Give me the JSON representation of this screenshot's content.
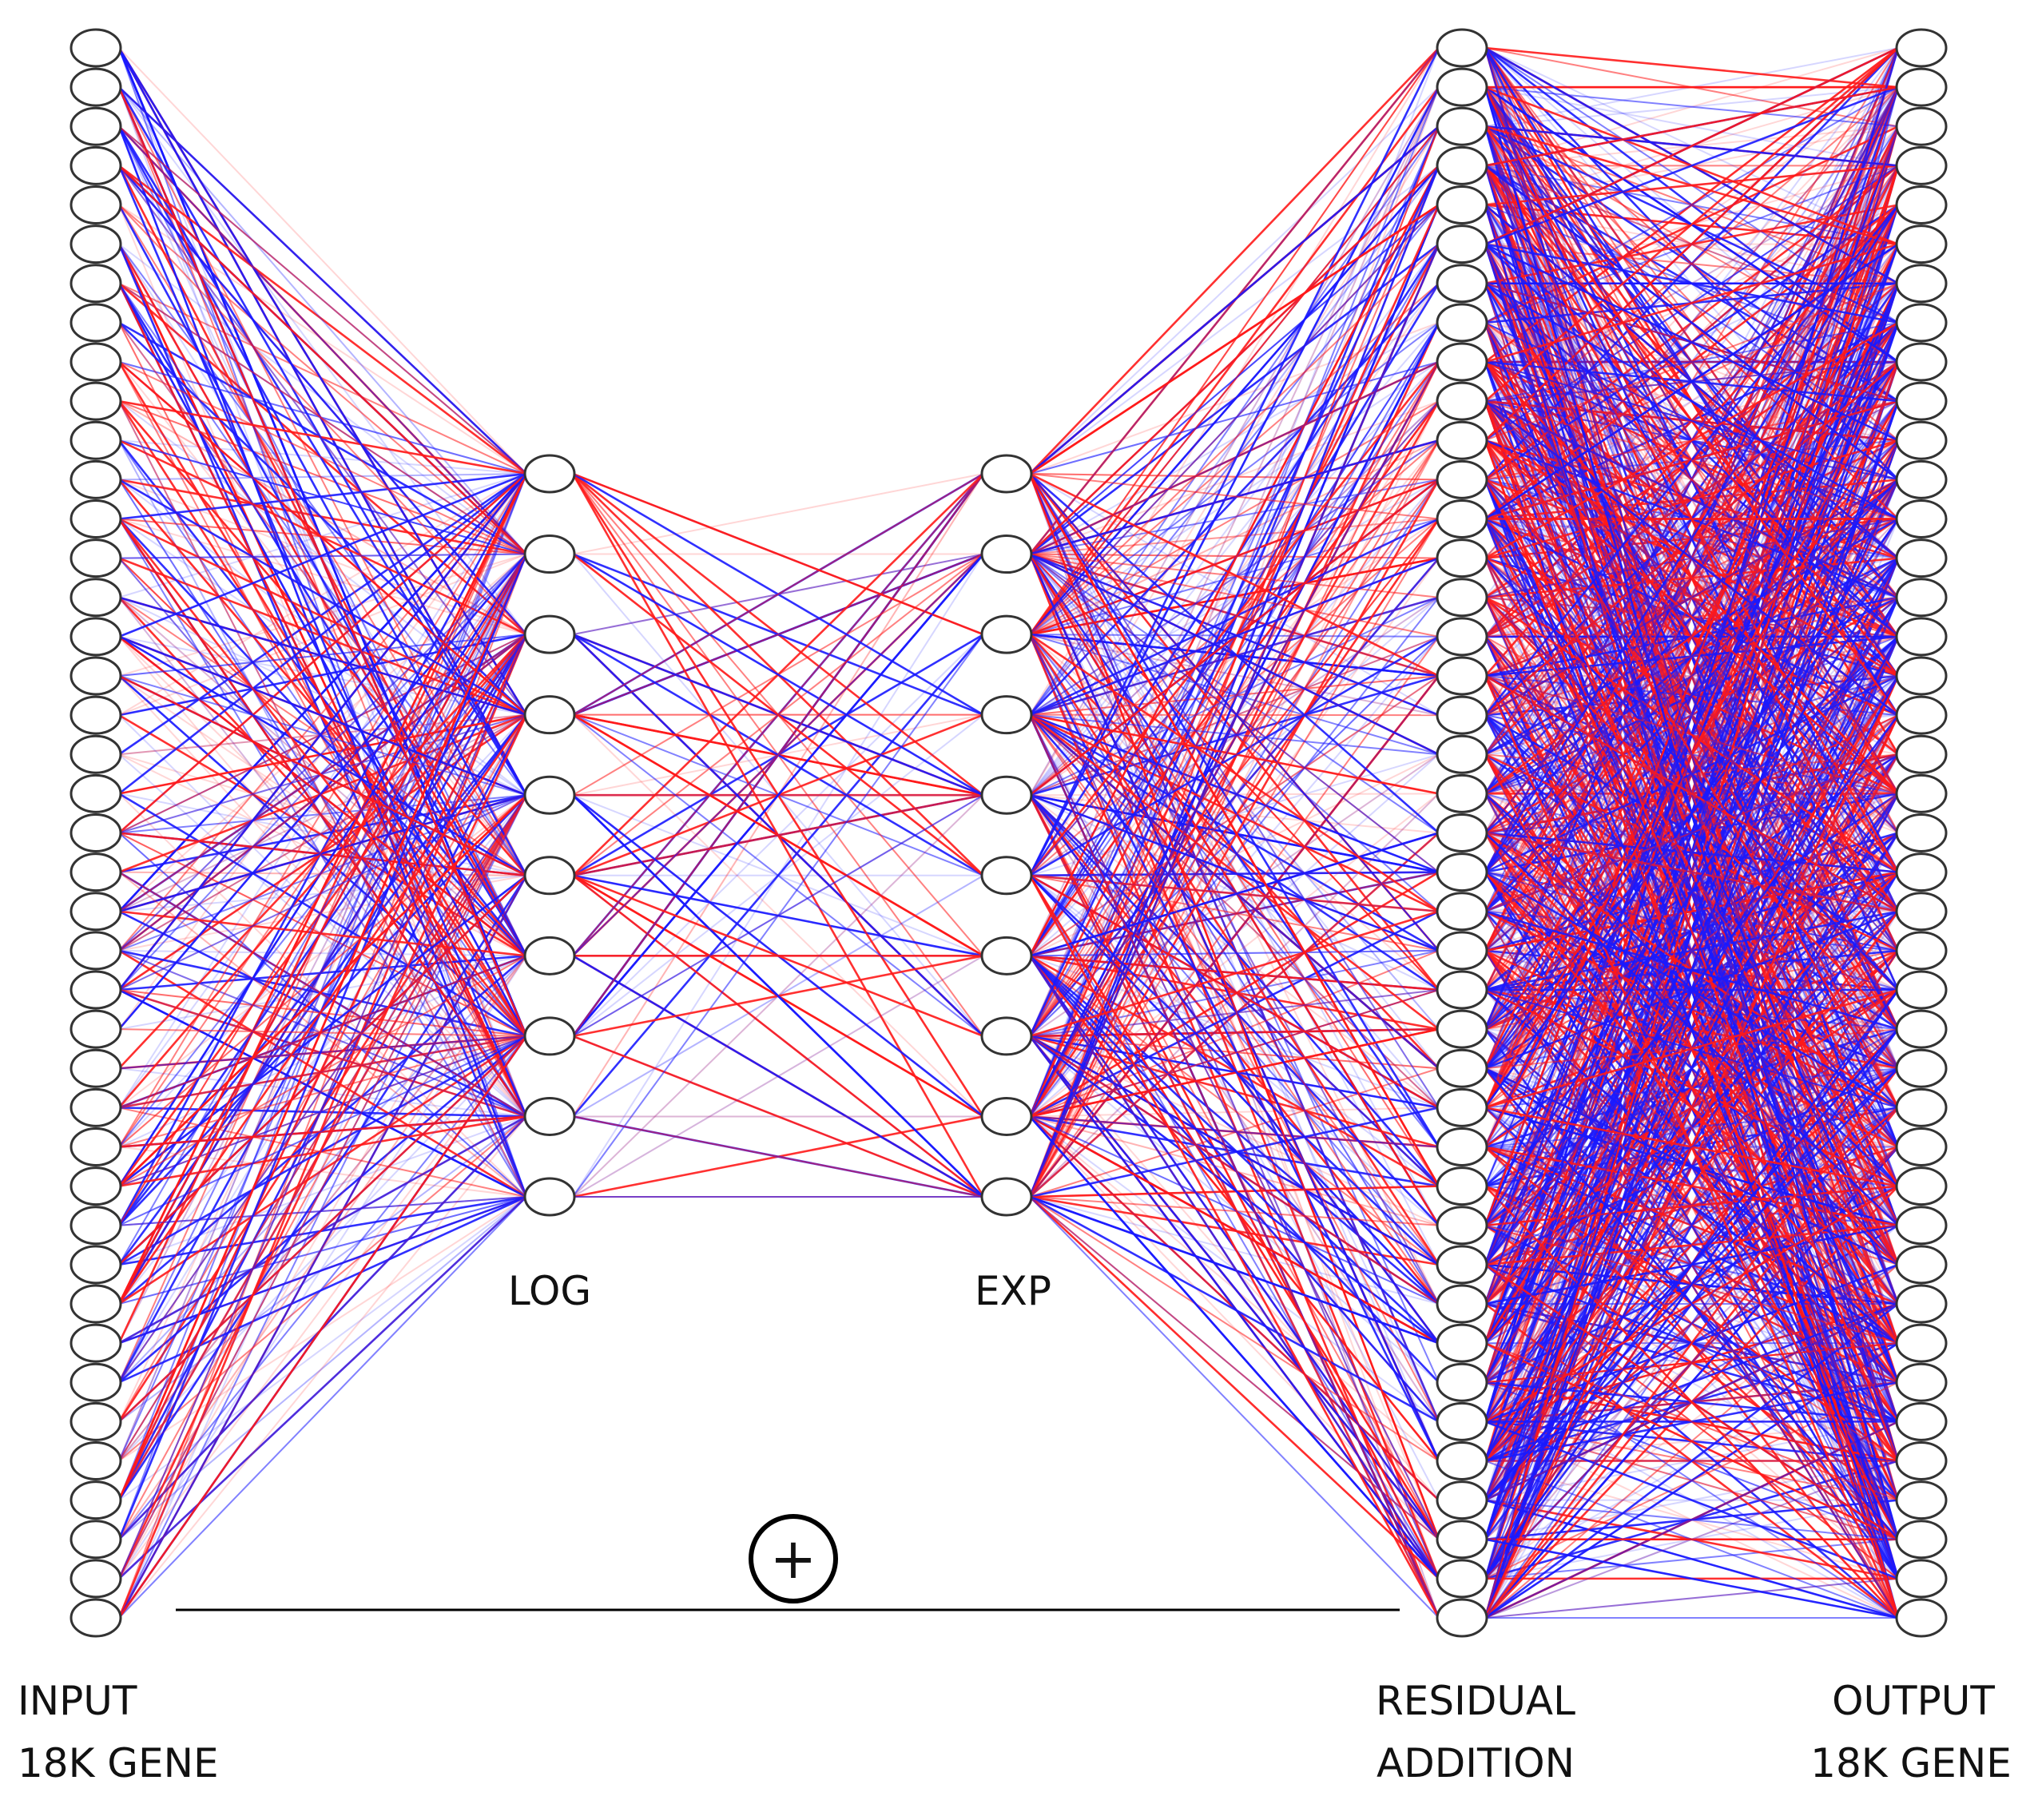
{
  "labels": {
    "input_line1": "INPUT",
    "input_line2": "18K GENE",
    "log": "LOG",
    "exp": "EXP",
    "residual_line1": "RESIDUAL",
    "residual_line2": "ADDITION",
    "output_line1": "OUTPUT",
    "output_line2": "18K GENE",
    "plus_symbol": "+"
  },
  "layers": {
    "input": {
      "nodes": 41
    },
    "log": {
      "nodes": 10
    },
    "exp": {
      "nodes": 10
    },
    "residual": {
      "nodes": 41
    },
    "output": {
      "nodes": 41
    }
  },
  "colors": {
    "positive_edge": "#ff1a1a",
    "negative_edge": "#1a1aff",
    "node_stroke": "#333333",
    "node_fill": "#ffffff"
  }
}
